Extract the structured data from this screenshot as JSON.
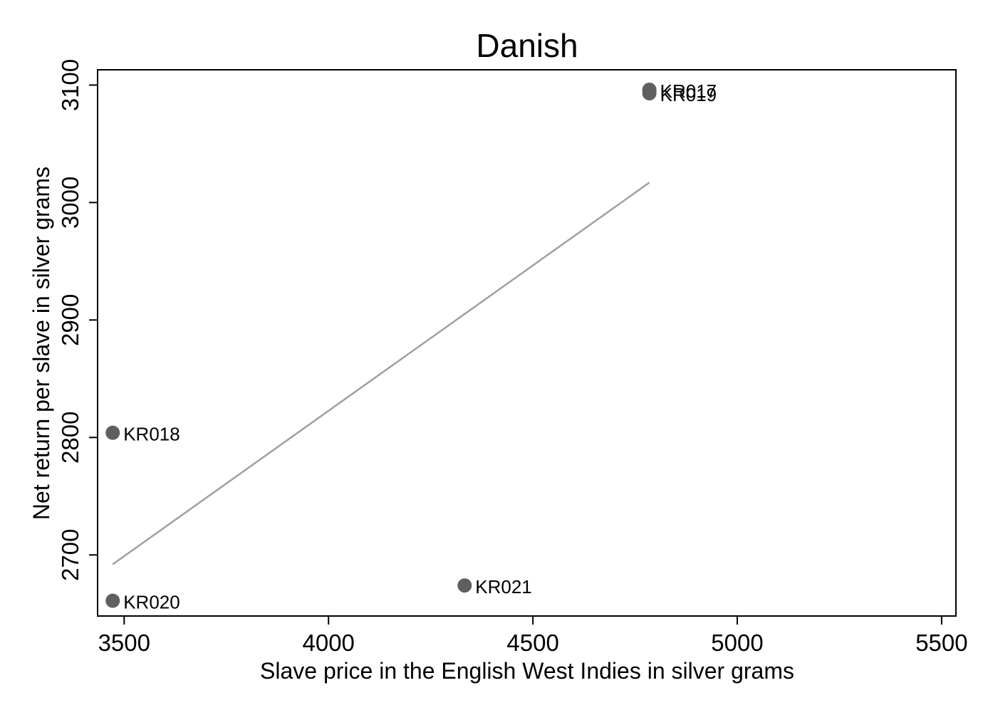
{
  "chart_data": {
    "type": "scatter",
    "title": "Danish",
    "xlabel": "Slave price in the English West Indies in silver grams",
    "ylabel": "Net return per slave in silver grams",
    "xlim": [
      3435,
      5535
    ],
    "ylim": [
      2648,
      3113
    ],
    "xticks": [
      3500,
      4000,
      4500,
      5000,
      5500
    ],
    "yticks": [
      2700,
      2800,
      2900,
      3000,
      3100
    ],
    "grid": false,
    "legend": "none",
    "marker_color": "#5f5f5f",
    "fit_color": "#a0a0a0",
    "points": [
      {
        "label": "KR017",
        "x": 4785,
        "y": 3096
      },
      {
        "label": "KR019",
        "x": 4785,
        "y": 3093
      },
      {
        "label": "KR018",
        "x": 3472,
        "y": 2804
      },
      {
        "label": "KR020",
        "x": 3472,
        "y": 2661
      },
      {
        "label": "KR021",
        "x": 4333,
        "y": 2674
      }
    ],
    "fit_line": {
      "x": [
        3472,
        4785
      ],
      "y": [
        2692,
        3017
      ]
    }
  }
}
